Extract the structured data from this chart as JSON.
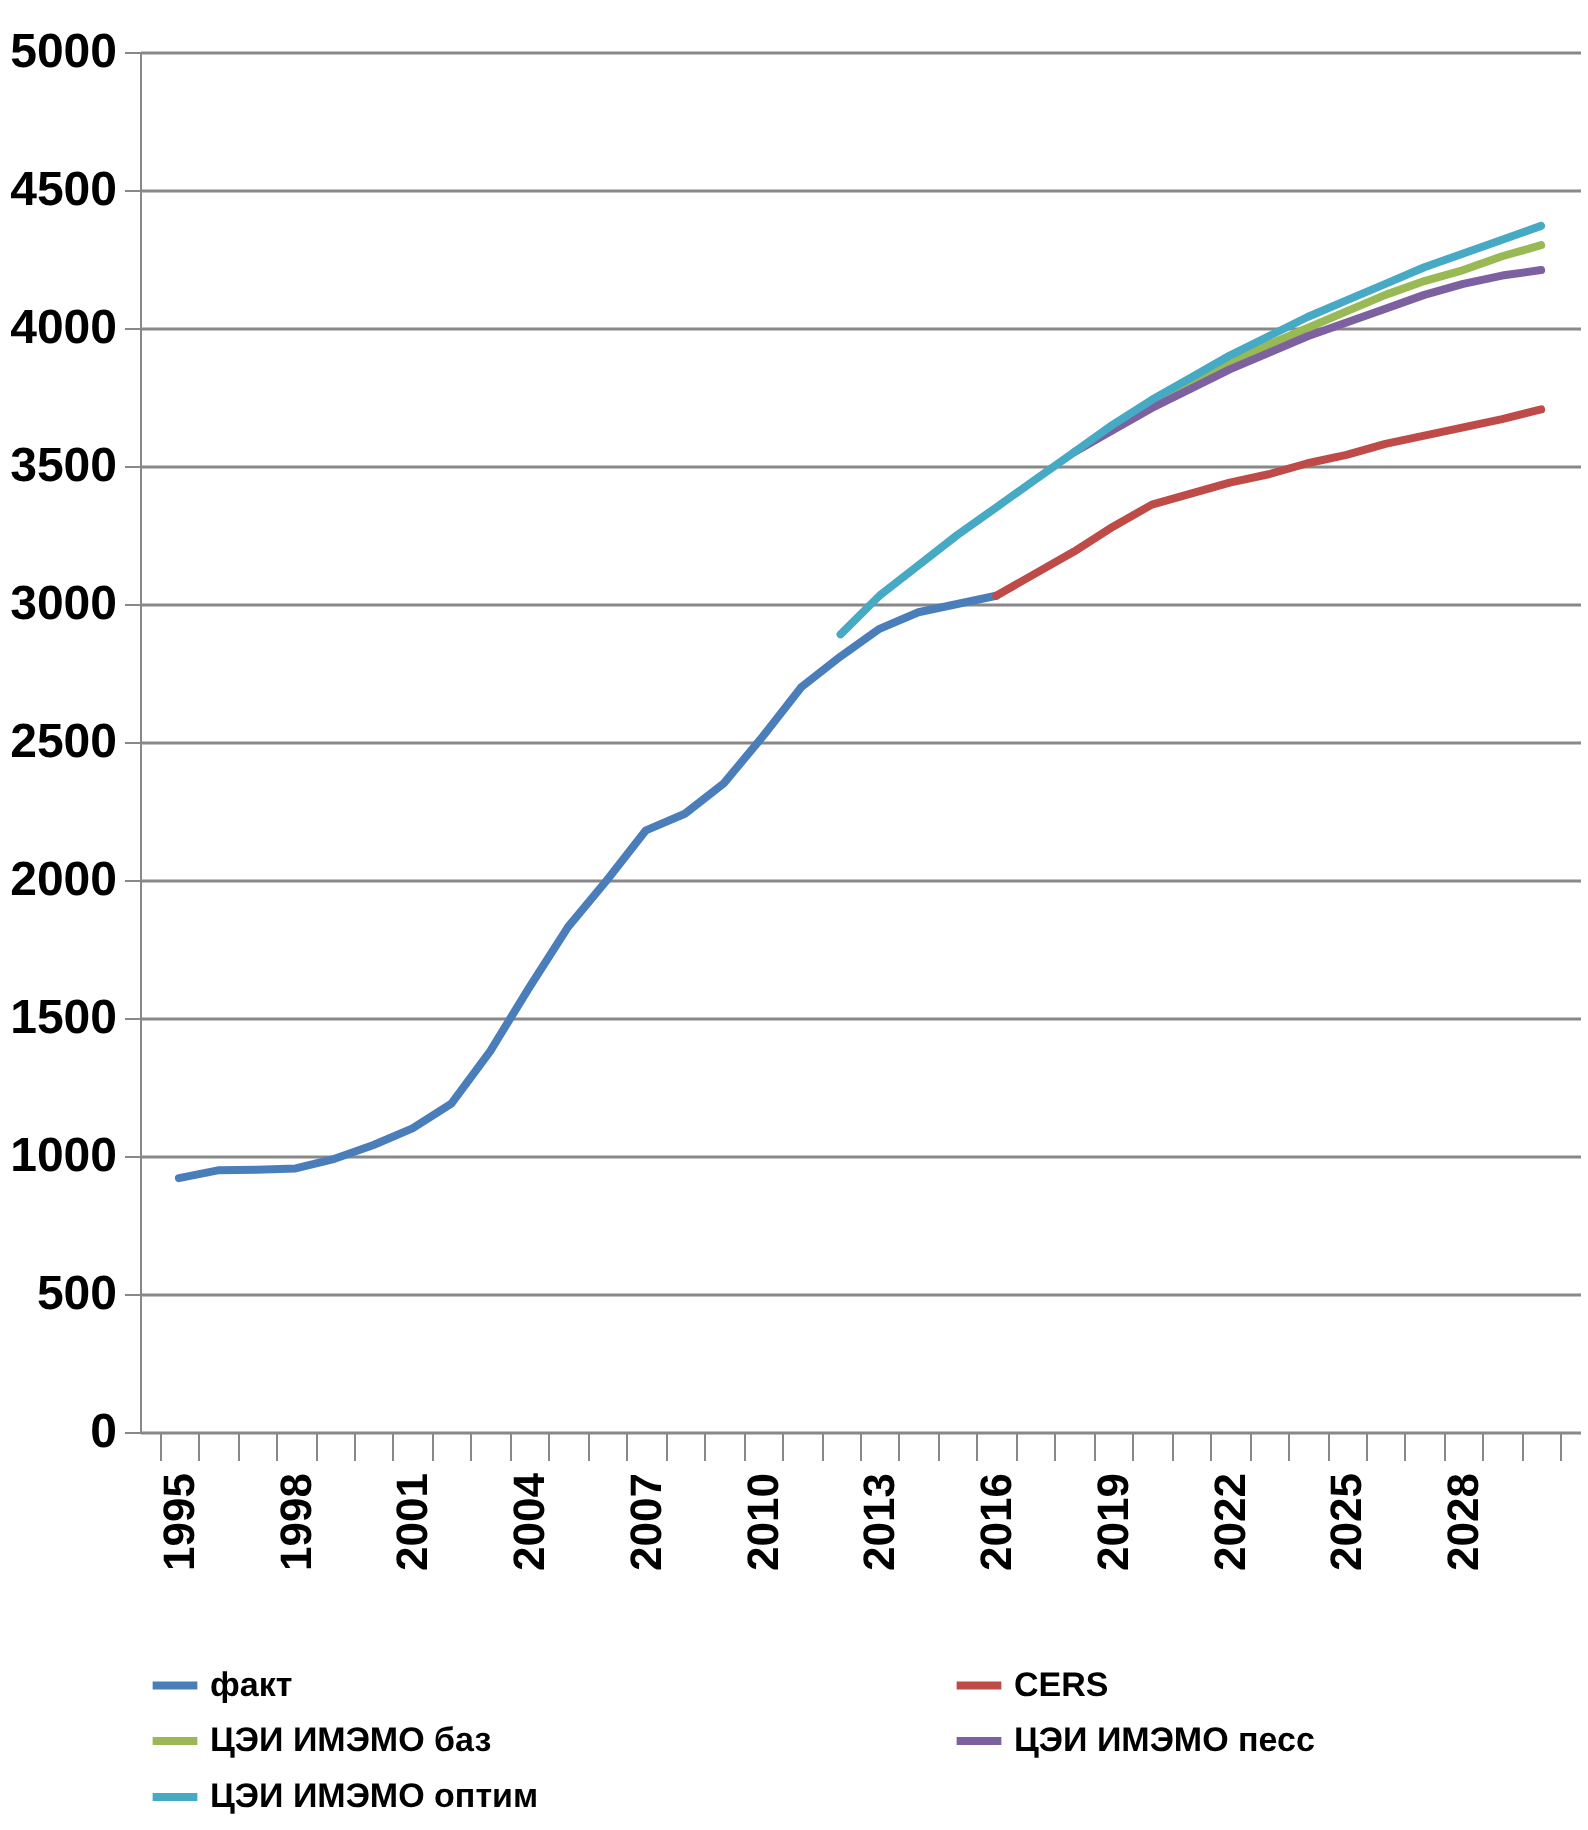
{
  "chart_data": {
    "type": "line",
    "categories": [
      "1995",
      null,
      null,
      "1998",
      null,
      null,
      "2001",
      null,
      null,
      "2004",
      null,
      null,
      "2007",
      null,
      null,
      "2010",
      null,
      null,
      "2013",
      null,
      null,
      "2016",
      null,
      null,
      "2019",
      null,
      null,
      "2022",
      null,
      null,
      "2025",
      null,
      null,
      "2028",
      null,
      null
    ],
    "ylim": [
      0,
      5000
    ],
    "yticks": [
      0,
      500,
      1000,
      1500,
      2000,
      2500,
      3000,
      3500,
      4000,
      4500,
      5000
    ],
    "grid": "y",
    "legend": "bottom",
    "line_style": "solid",
    "series": [
      {
        "name": "факт",
        "color": "#4a7ebb",
        "values": [
          920,
          948,
          950,
          955,
          990,
          1040,
          1100,
          1190,
          1380,
          1610,
          1830,
          2000,
          2180,
          2240,
          2350,
          2520,
          2700,
          2810,
          2910,
          2970,
          3000,
          3030,
          null,
          null,
          null,
          null,
          null,
          null,
          null,
          null,
          null,
          null,
          null,
          null,
          null,
          null
        ]
      },
      {
        "name": "CERS",
        "color": "#be4b48",
        "values": [
          null,
          null,
          null,
          null,
          null,
          null,
          null,
          null,
          null,
          null,
          null,
          null,
          null,
          null,
          null,
          null,
          null,
          null,
          null,
          null,
          null,
          3030,
          3110,
          3190,
          3280,
          3360,
          3400,
          3440,
          3470,
          3510,
          3540,
          3580,
          3610,
          3640,
          3670,
          3705
        ]
      },
      {
        "name": "ЦЭИ ИМЭМО баз",
        "color": "#98b954",
        "values": [
          null,
          null,
          null,
          null,
          null,
          null,
          null,
          null,
          null,
          null,
          null,
          null,
          null,
          null,
          null,
          null,
          null,
          null,
          null,
          null,
          null,
          null,
          null,
          null,
          null,
          3720,
          3790,
          3870,
          3940,
          4000,
          4060,
          4120,
          4170,
          4210,
          4260,
          4300
        ]
      },
      {
        "name": "ЦЭИ ИМЭМО песс",
        "color": "#7d60a0",
        "values": [
          null,
          null,
          null,
          null,
          null,
          null,
          null,
          null,
          null,
          null,
          null,
          null,
          null,
          null,
          null,
          null,
          null,
          null,
          null,
          null,
          null,
          null,
          null,
          3550,
          3630,
          3710,
          3780,
          3850,
          3910,
          3970,
          4020,
          4070,
          4120,
          4160,
          4190,
          4210
        ]
      },
      {
        "name": "ЦЭИ ИМЭМО оптим",
        "color": "#46aac5",
        "values": [
          null,
          null,
          null,
          null,
          null,
          null,
          null,
          null,
          null,
          null,
          null,
          null,
          null,
          null,
          null,
          null,
          null,
          2890,
          3030,
          3140,
          3250,
          3350,
          3450,
          3550,
          3650,
          3740,
          3820,
          3900,
          3970,
          4040,
          4100,
          4160,
          4220,
          4270,
          4320,
          4370
        ]
      }
    ]
  }
}
